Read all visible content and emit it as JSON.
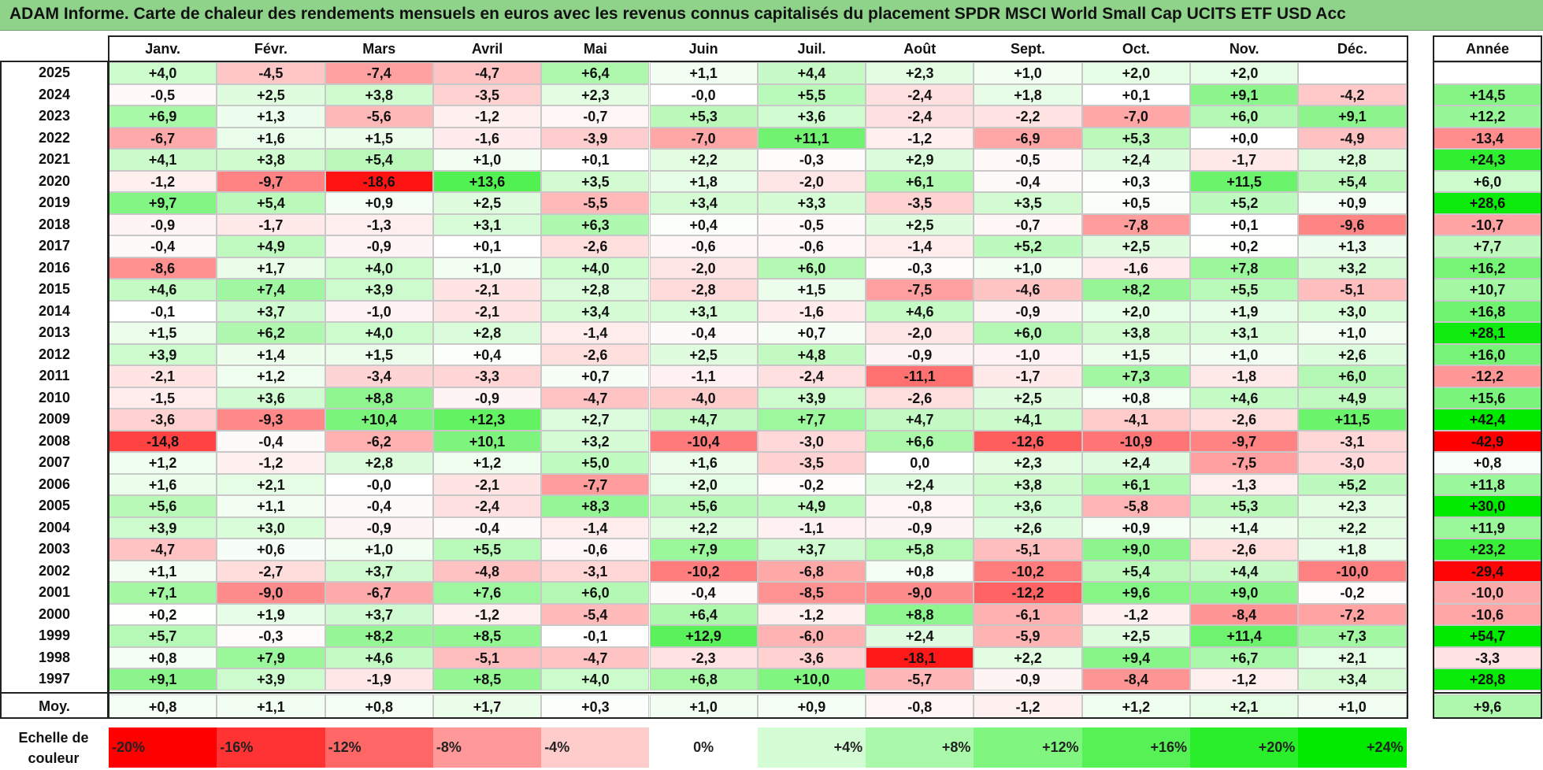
{
  "title": "ADAM Informe. Carte de chaleur des rendements mensuels en euros avec les revenus connus capitalisés du placement SPDR MSCI World Small Cap UCITS ETF USD Acc",
  "chart_data": {
    "type": "heatmap",
    "title": "ADAM Informe. Carte de chaleur des rendements mensuels en euros avec les revenus connus capitalisés du placement SPDR MSCI World Small Cap UCITS ETF USD Acc",
    "months": [
      "Janv.",
      "Févr.",
      "Mars",
      "Avril",
      "Mai",
      "Juin",
      "Juil.",
      "Août",
      "Sept.",
      "Oct.",
      "Nov.",
      "Déc."
    ],
    "year_header": "Année",
    "avg_label": "Moy.",
    "rows": [
      {
        "year": "2025",
        "values": [
          "+4,0",
          "-4,5",
          "-7,4",
          "-4,7",
          "+6,4",
          "+1,1",
          "+4,4",
          "+2,3",
          "+1,0",
          "+2,0",
          "+2,0",
          ""
        ],
        "annual": ""
      },
      {
        "year": "2024",
        "values": [
          "-0,5",
          "+2,5",
          "+3,8",
          "-3,5",
          "+2,3",
          "-0,0",
          "+5,5",
          "-2,4",
          "+1,8",
          "+0,1",
          "+9,1",
          "-4,2"
        ],
        "annual": "+14,5"
      },
      {
        "year": "2023",
        "values": [
          "+6,9",
          "+1,3",
          "-5,6",
          "-1,2",
          "-0,7",
          "+5,3",
          "+3,6",
          "-2,4",
          "-2,2",
          "-7,0",
          "+6,0",
          "+9,1"
        ],
        "annual": "+12,2"
      },
      {
        "year": "2022",
        "values": [
          "-6,7",
          "+1,6",
          "+1,5",
          "-1,6",
          "-3,9",
          "-7,0",
          "+11,1",
          "-1,2",
          "-6,9",
          "+5,3",
          "+0,0",
          "-4,9"
        ],
        "annual": "-13,4"
      },
      {
        "year": "2021",
        "values": [
          "+4,1",
          "+3,8",
          "+5,4",
          "+1,0",
          "+0,1",
          "+2,2",
          "-0,3",
          "+2,9",
          "-0,5",
          "+2,4",
          "-1,7",
          "+2,8"
        ],
        "annual": "+24,3"
      },
      {
        "year": "2020",
        "values": [
          "-1,2",
          "-9,7",
          "-18,6",
          "+13,6",
          "+3,5",
          "+1,8",
          "-2,0",
          "+6,1",
          "-0,4",
          "+0,3",
          "+11,5",
          "+5,4"
        ],
        "annual": "+6,0"
      },
      {
        "year": "2019",
        "values": [
          "+9,7",
          "+5,4",
          "+0,9",
          "+2,5",
          "-5,5",
          "+3,4",
          "+3,3",
          "-3,5",
          "+3,5",
          "+0,5",
          "+5,2",
          "+0,9"
        ],
        "annual": "+28,6"
      },
      {
        "year": "2018",
        "values": [
          "-0,9",
          "-1,7",
          "-1,3",
          "+3,1",
          "+6,3",
          "+0,4",
          "-0,5",
          "+2,5",
          "-0,7",
          "-7,8",
          "+0,1",
          "-9,6"
        ],
        "annual": "-10,7"
      },
      {
        "year": "2017",
        "values": [
          "-0,4",
          "+4,9",
          "-0,9",
          "+0,1",
          "-2,6",
          "-0,6",
          "-0,6",
          "-1,4",
          "+5,2",
          "+2,5",
          "+0,2",
          "+1,3"
        ],
        "annual": "+7,7"
      },
      {
        "year": "2016",
        "values": [
          "-8,6",
          "+1,7",
          "+4,0",
          "+1,0",
          "+4,0",
          "-2,0",
          "+6,0",
          "-0,3",
          "+1,0",
          "-1,6",
          "+7,8",
          "+3,2"
        ],
        "annual": "+16,2"
      },
      {
        "year": "2015",
        "values": [
          "+4,6",
          "+7,4",
          "+3,9",
          "-2,1",
          "+2,8",
          "-2,8",
          "+1,5",
          "-7,5",
          "-4,6",
          "+8,2",
          "+5,5",
          "-5,1"
        ],
        "annual": "+10,7"
      },
      {
        "year": "2014",
        "values": [
          "-0,1",
          "+3,7",
          "-1,0",
          "-2,1",
          "+3,4",
          "+3,1",
          "-1,6",
          "+4,6",
          "-0,9",
          "+2,0",
          "+1,9",
          "+3,0"
        ],
        "annual": "+16,8"
      },
      {
        "year": "2013",
        "values": [
          "+1,5",
          "+6,2",
          "+4,0",
          "+2,8",
          "-1,4",
          "-0,4",
          "+0,7",
          "-2,0",
          "+6,0",
          "+3,8",
          "+3,1",
          "+1,0"
        ],
        "annual": "+28,1"
      },
      {
        "year": "2012",
        "values": [
          "+3,9",
          "+1,4",
          "+1,5",
          "+0,4",
          "-2,6",
          "+2,5",
          "+4,8",
          "-0,9",
          "-1,0",
          "+1,5",
          "+1,0",
          "+2,6"
        ],
        "annual": "+16,0"
      },
      {
        "year": "2011",
        "values": [
          "-2,1",
          "+1,2",
          "-3,4",
          "-3,3",
          "+0,7",
          "-1,1",
          "-2,4",
          "-11,1",
          "-1,7",
          "+7,3",
          "-1,8",
          "+6,0"
        ],
        "annual": "-12,2"
      },
      {
        "year": "2010",
        "values": [
          "-1,5",
          "+3,6",
          "+8,8",
          "-0,9",
          "-4,7",
          "-4,0",
          "+3,9",
          "-2,6",
          "+2,5",
          "+0,8",
          "+4,6",
          "+4,9"
        ],
        "annual": "+15,6"
      },
      {
        "year": "2009",
        "values": [
          "-3,6",
          "-9,3",
          "+10,4",
          "+12,3",
          "+2,7",
          "+4,7",
          "+7,7",
          "+4,7",
          "+4,1",
          "-4,1",
          "-2,6",
          "+11,5"
        ],
        "annual": "+42,4"
      },
      {
        "year": "2008",
        "values": [
          "-14,8",
          "-0,4",
          "-6,2",
          "+10,1",
          "+3,2",
          "-10,4",
          "-3,0",
          "+6,6",
          "-12,6",
          "-10,9",
          "-9,7",
          "-3,1"
        ],
        "annual": "-42,9"
      },
      {
        "year": "2007",
        "values": [
          "+1,2",
          "-1,2",
          "+2,8",
          "+1,2",
          "+5,0",
          "+1,6",
          "-3,5",
          "0,0",
          "+2,3",
          "+2,4",
          "-7,5",
          "-3,0"
        ],
        "annual": "+0,8"
      },
      {
        "year": "2006",
        "values": [
          "+1,6",
          "+2,1",
          "-0,0",
          "-2,1",
          "-7,7",
          "+2,0",
          "-0,2",
          "+2,4",
          "+3,8",
          "+6,1",
          "-1,3",
          "+5,2"
        ],
        "annual": "+11,8"
      },
      {
        "year": "2005",
        "values": [
          "+5,6",
          "+1,1",
          "-0,4",
          "-2,4",
          "+8,3",
          "+5,6",
          "+4,9",
          "-0,8",
          "+3,6",
          "-5,8",
          "+5,3",
          "+2,3"
        ],
        "annual": "+30,0"
      },
      {
        "year": "2004",
        "values": [
          "+3,9",
          "+3,0",
          "-0,9",
          "-0,4",
          "-1,4",
          "+2,2",
          "-1,1",
          "-0,9",
          "+2,6",
          "+0,9",
          "+1,4",
          "+2,2"
        ],
        "annual": "+11,9"
      },
      {
        "year": "2003",
        "values": [
          "-4,7",
          "+0,6",
          "+1,0",
          "+5,5",
          "-0,6",
          "+7,9",
          "+3,7",
          "+5,8",
          "-5,1",
          "+9,0",
          "-2,6",
          "+1,8"
        ],
        "annual": "+23,2"
      },
      {
        "year": "2002",
        "values": [
          "+1,1",
          "-2,7",
          "+3,7",
          "-4,8",
          "-3,1",
          "-10,2",
          "-6,8",
          "+0,8",
          "-10,2",
          "+5,4",
          "+4,4",
          "-10,0"
        ],
        "annual": "-29,4"
      },
      {
        "year": "2001",
        "values": [
          "+7,1",
          "-9,0",
          "-6,7",
          "+7,6",
          "+6,0",
          "-0,4",
          "-8,5",
          "-9,0",
          "-12,2",
          "+9,6",
          "+9,0",
          "-0,2"
        ],
        "annual": "-10,0"
      },
      {
        "year": "2000",
        "values": [
          "+0,2",
          "+1,9",
          "+3,7",
          "-1,2",
          "-5,4",
          "+6,4",
          "-1,2",
          "+8,8",
          "-6,1",
          "-1,2",
          "-8,4",
          "-7,2"
        ],
        "annual": "-10,6"
      },
      {
        "year": "1999",
        "values": [
          "+5,7",
          "-0,3",
          "+8,2",
          "+8,5",
          "-0,1",
          "+12,9",
          "-6,0",
          "+2,4",
          "-5,9",
          "+2,5",
          "+11,4",
          "+7,3"
        ],
        "annual": "+54,7"
      },
      {
        "year": "1998",
        "values": [
          "+0,8",
          "+7,9",
          "+4,6",
          "-5,1",
          "-4,7",
          "-2,3",
          "-3,6",
          "-18,1",
          "+2,2",
          "+9,4",
          "+6,7",
          "+2,1"
        ],
        "annual": "-3,3"
      },
      {
        "year": "1997",
        "values": [
          "+9,1",
          "+3,9",
          "-1,9",
          "+8,5",
          "+4,0",
          "+6,8",
          "+10,0",
          "-5,7",
          "-0,9",
          "-8,4",
          "-1,2",
          "+3,4"
        ],
        "annual": "+28,8"
      }
    ],
    "averages": [
      "+0,8",
      "+1,1",
      "+0,8",
      "+1,7",
      "+0,3",
      "+1,0",
      "+0,9",
      "-0,8",
      "-1,2",
      "+1,2",
      "+2,1",
      "+1,0"
    ],
    "average_annual": "+9,6",
    "legend_label": "Echelle de couleur",
    "legend": [
      {
        "label": "-20%",
        "value": -20,
        "color": "#ff0000"
      },
      {
        "label": "-16%",
        "value": -16,
        "color": "#ff3333"
      },
      {
        "label": "-12%",
        "value": -12,
        "color": "#ff6666"
      },
      {
        "label": "-8%",
        "value": -8,
        "color": "#ff9999"
      },
      {
        "label": "-4%",
        "value": -4,
        "color": "#ffcccc"
      },
      {
        "label": "0%",
        "value": 0,
        "color": "#ffffff"
      },
      {
        "label": "+4%",
        "value": 4,
        "color": "#d5fdd5"
      },
      {
        "label": "+8%",
        "value": 8,
        "color": "#aaf9aa"
      },
      {
        "label": "+12%",
        "value": 12,
        "color": "#80f580"
      },
      {
        "label": "+16%",
        "value": 16,
        "color": "#55f155"
      },
      {
        "label": "+20%",
        "value": 20,
        "color": "#2bee2b"
      },
      {
        "label": "+24%",
        "value": 24,
        "color": "#00ea00"
      }
    ]
  }
}
